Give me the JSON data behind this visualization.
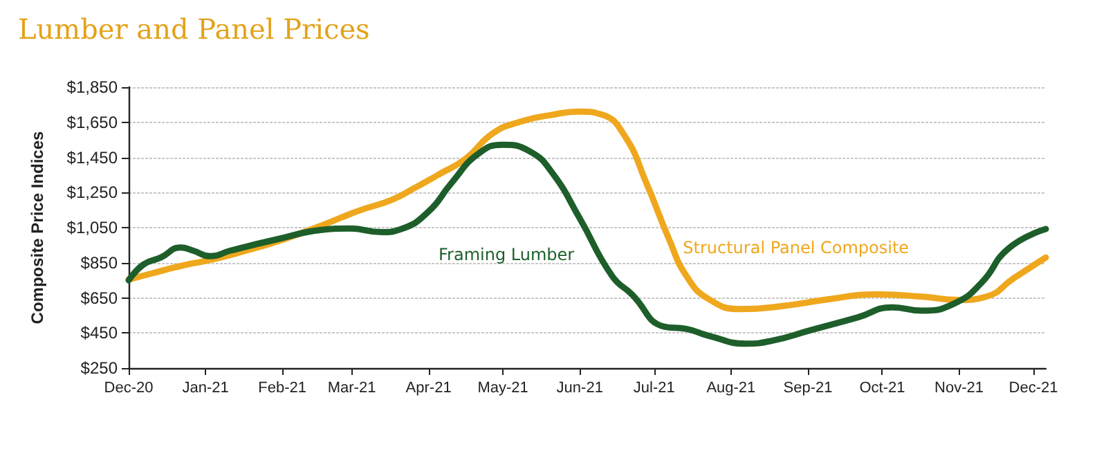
{
  "chart_data": {
    "type": "line",
    "title": "Lumber and Panel Prices",
    "ylabel": "Composite Price Indices",
    "x": [
      "2020-12-01",
      "2020-12-07",
      "2020-12-14",
      "2020-12-22",
      "2020-12-27",
      "2021-01-03",
      "2021-01-11",
      "2021-01-30",
      "2021-02-17",
      "2021-02-28",
      "2021-03-13",
      "2021-03-21",
      "2021-04-01",
      "2021-04-10",
      "2021-04-21",
      "2021-05-01",
      "2021-05-12",
      "2021-05-21",
      "2021-06-01",
      "2021-06-14",
      "2021-06-22",
      "2021-07-05",
      "2021-07-14",
      "2021-07-23",
      "2021-08-07",
      "2021-08-18",
      "2021-09-02",
      "2021-09-21",
      "2021-10-05",
      "2021-10-17",
      "2021-10-30",
      "2021-11-10",
      "2021-11-21",
      "2021-12-06"
    ],
    "series": [
      {
        "name": "Framing Lumber",
        "color": "#1d5e2a",
        "values": [
          750,
          840,
          880,
          937,
          919,
          887,
          919,
          984,
          1037,
          1045,
          1024,
          1042,
          1142,
          1300,
          1470,
          1522,
          1483,
          1360,
          1102,
          775,
          670,
          486,
          473,
          434,
          389,
          407,
          465,
          538,
          596,
          577,
          617,
          735,
          932,
          1042
        ]
      },
      {
        "name": "Structural Panel Composite",
        "color": "#efa71d",
        "x": [
          "2020-12-01",
          "2020-12-10",
          "2020-12-23",
          "2021-01-03",
          "2021-01-14",
          "2021-01-30",
          "2021-02-17",
          "2021-03-04",
          "2021-03-17",
          "2021-03-26",
          "2021-04-05",
          "2021-04-16",
          "2021-04-27",
          "2021-05-08",
          "2021-05-21",
          "2021-06-01",
          "2021-06-10",
          "2021-06-19",
          "2021-06-28",
          "2021-07-07",
          "2021-07-14",
          "2021-07-23",
          "2021-08-05",
          "2021-08-22",
          "2021-09-10",
          "2021-09-28",
          "2021-10-17",
          "2021-11-01",
          "2021-11-12",
          "2021-11-23",
          "2021-12-06"
        ],
        "values": [
          754,
          788,
          835,
          866,
          906,
          971,
          1063,
          1147,
          1207,
          1273,
          1352,
          1443,
          1588,
          1653,
          1693,
          1711,
          1693,
          1575,
          1299,
          984,
          775,
          643,
          586,
          604,
          643,
          670,
          657,
          638,
          657,
          761,
          880
        ]
      }
    ],
    "xlim": [
      "2020-12-01",
      "2021-12-06"
    ],
    "xticks": [
      {
        "value": "2020-12-01",
        "label": "Dec-20"
      },
      {
        "value": "2021-01-01",
        "label": "Jan-21"
      },
      {
        "value": "2021-02-01",
        "label": "Feb-21"
      },
      {
        "value": "2021-03-01",
        "label": "Mar-21"
      },
      {
        "value": "2021-04-01",
        "label": "Apr-21"
      },
      {
        "value": "2021-05-01",
        "label": "May-21"
      },
      {
        "value": "2021-06-01",
        "label": "Jun-21"
      },
      {
        "value": "2021-07-01",
        "label": "Jul-21"
      },
      {
        "value": "2021-08-01",
        "label": "Aug-21"
      },
      {
        "value": "2021-09-01",
        "label": "Sep-21"
      },
      {
        "value": "2021-10-01",
        "label": "Oct-21"
      },
      {
        "value": "2021-11-01",
        "label": "Nov-21"
      },
      {
        "value": "2021-12-01",
        "label": "Dec-21"
      }
    ],
    "ylim": [
      250,
      1850
    ],
    "yticks": [
      {
        "value": 250,
        "label": "$250"
      },
      {
        "value": 450,
        "label": "$450"
      },
      {
        "value": 650,
        "label": "$650"
      },
      {
        "value": 850,
        "label": "$850"
      },
      {
        "value": 1050,
        "label": "$1,050"
      },
      {
        "value": 1250,
        "label": "$1,250"
      },
      {
        "value": 1450,
        "label": "$1,450"
      },
      {
        "value": 1650,
        "label": "$1,650"
      },
      {
        "value": 1850,
        "label": "$1,850"
      }
    ],
    "grid": "y",
    "legend": false,
    "marker": "none",
    "line_style": "solid"
  }
}
